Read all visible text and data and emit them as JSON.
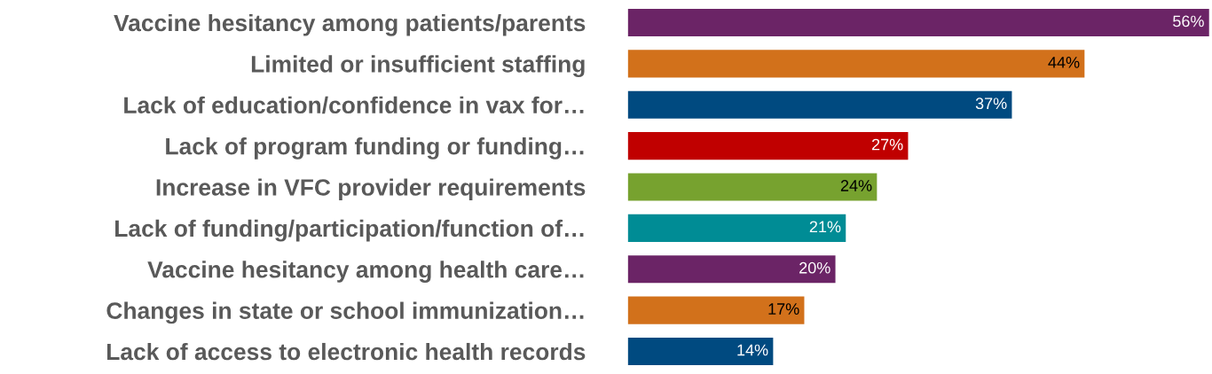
{
  "chart_data": {
    "type": "bar",
    "orientation": "horizontal",
    "categories": [
      "Vaccine hesitancy among patients/parents",
      "Limited or insufficient staffing",
      "Lack of education/confidence in vax for…",
      "Lack of program funding or funding…",
      "Increase in VFC provider requirements",
      "Lack of funding/participation/function of…",
      "Vaccine hesitancy among health care…",
      "Changes in state or school immunization…",
      "Lack of access to electronic health records"
    ],
    "values": [
      56,
      44,
      37,
      27,
      24,
      21,
      20,
      17,
      14
    ],
    "value_labels": [
      "56%",
      "44%",
      "37%",
      "27%",
      "24%",
      "21%",
      "20%",
      "17%",
      "14%"
    ],
    "colors": [
      "#6b2466",
      "#d2711b",
      "#004a80",
      "#c00000",
      "#77a22f",
      "#008c95",
      "#6b2466",
      "#d2711b",
      "#004a80"
    ],
    "tick_labels": "y",
    "grid": false,
    "legend": false
  }
}
